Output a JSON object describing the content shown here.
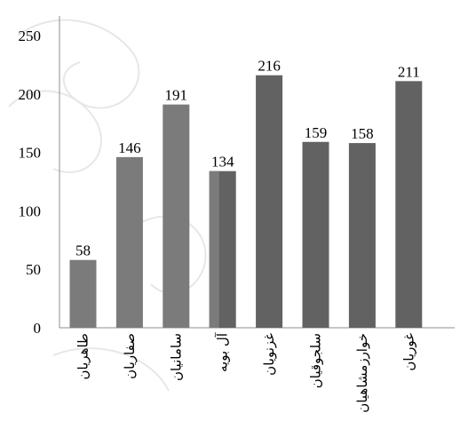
{
  "chart_data": {
    "type": "bar",
    "title": "",
    "xlabel": "",
    "ylabel": "",
    "categories": [
      "طاهریان",
      "صفاریان",
      "سامانیان",
      "آل بویه",
      "غزنویان",
      "سلجوقیان",
      "خوارزمشاهیان",
      "غوریان"
    ],
    "values": [
      58,
      146,
      191,
      134,
      216,
      159,
      158,
      211
    ],
    "ylim": [
      0,
      250
    ],
    "yticks": [
      "0",
      "50",
      "100",
      "150",
      "200",
      "250"
    ],
    "data_labels": [
      "58",
      "146",
      "191",
      "134",
      "216",
      "159",
      "158",
      "211"
    ],
    "grid": false,
    "legend": "none",
    "colors": {
      "bar_light": "#7b7b7b",
      "bar_dark": "#626262",
      "axis": "#8c8c8c",
      "text": "#000000"
    }
  }
}
